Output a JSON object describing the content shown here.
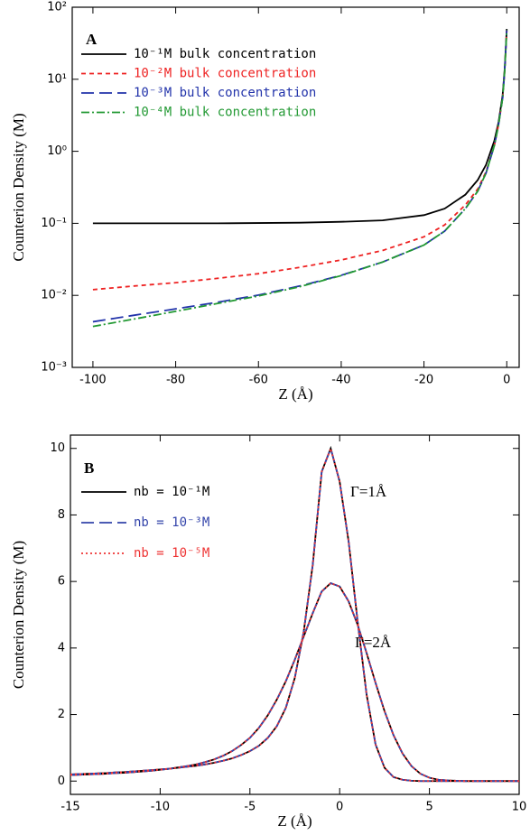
{
  "chart_data": [
    {
      "type": "line",
      "panel_label": "A",
      "x_label": "Z (Å)",
      "y_label": "Counterion Density (M)",
      "log_y": true,
      "xlim": [
        -105,
        3
      ],
      "xticks": [
        -100,
        -80,
        -60,
        -40,
        -20,
        0
      ],
      "ylim": [
        0.001,
        100
      ],
      "yticks": [
        {
          "value": 0.001,
          "label": "10⁻³"
        },
        {
          "value": 0.01,
          "label": "10⁻²"
        },
        {
          "value": 0.1,
          "label": "10⁻¹"
        },
        {
          "value": 1,
          "label": "10⁰"
        },
        {
          "value": 10,
          "label": "10¹"
        },
        {
          "value": 100,
          "label": "10²"
        }
      ],
      "x": [
        -100,
        -90,
        -80,
        -70,
        -60,
        -50,
        -40,
        -30,
        -20,
        -15,
        -10,
        -7,
        -5,
        -3,
        -2,
        -1,
        -0.5,
        0
      ],
      "series": [
        {
          "name": "10⁻¹M bulk concentration",
          "color": "#000000",
          "dash": "solid",
          "values": [
            0.1,
            0.1,
            0.1,
            0.1,
            0.101,
            0.102,
            0.105,
            0.11,
            0.13,
            0.16,
            0.25,
            0.4,
            0.65,
            1.4,
            2.5,
            6,
            14,
            50
          ]
        },
        {
          "name": "10⁻²M bulk concentration",
          "color": "#ee2222",
          "dash": "short",
          "values": [
            0.012,
            0.0135,
            0.015,
            0.0172,
            0.02,
            0.0245,
            0.031,
            0.042,
            0.065,
            0.095,
            0.18,
            0.3,
            0.52,
            1.2,
            2.3,
            5.5,
            13,
            48
          ]
        },
        {
          "name": "10⁻³M bulk concentration",
          "color": "#2233aa",
          "dash": "long",
          "values": [
            0.0043,
            0.0053,
            0.0065,
            0.008,
            0.0101,
            0.0135,
            0.019,
            0.029,
            0.05,
            0.078,
            0.16,
            0.28,
            0.5,
            1.2,
            2.3,
            5.5,
            13,
            48
          ]
        },
        {
          "name": "10⁻⁴M bulk concentration",
          "color": "#229933",
          "dash": "dashdot",
          "values": [
            0.0037,
            0.0047,
            0.006,
            0.0077,
            0.0098,
            0.0132,
            0.0188,
            0.029,
            0.05,
            0.078,
            0.16,
            0.28,
            0.5,
            1.2,
            2.3,
            5.5,
            13,
            48
          ]
        }
      ]
    },
    {
      "type": "line",
      "panel_label": "B",
      "x_label": "Z (Å)",
      "y_label": "Counterion Density (M)",
      "log_y": false,
      "xlim": [
        -15,
        10
      ],
      "xticks": [
        -15,
        -10,
        -5,
        0,
        5,
        10
      ],
      "ylim": [
        -0.4,
        10.4
      ],
      "yticks": [
        0,
        2,
        4,
        6,
        8,
        10
      ],
      "annotations": [
        "Γ=1Å",
        "Γ=2Å"
      ],
      "x": [
        -15,
        -14.5,
        -14,
        -13.5,
        -13,
        -12.5,
        -12,
        -11.5,
        -11,
        -10.5,
        -10,
        -9.5,
        -9,
        -8.5,
        -8,
        -7.5,
        -7,
        -6.5,
        -6,
        -5.5,
        -5,
        -4.5,
        -4,
        -3.5,
        -3,
        -2.5,
        -2,
        -1.5,
        -1,
        -0.5,
        0,
        0.5,
        1,
        1.5,
        2,
        2.5,
        3,
        3.5,
        4,
        4.5,
        5,
        5.5,
        6,
        6.5,
        7,
        7.5,
        8,
        8.5,
        9,
        9.5,
        10
      ],
      "series": [
        {
          "name": "nb = 10⁻¹M",
          "color": "#000000",
          "dash": "solid",
          "curves": [
            [
              0.2,
              0.21,
              0.22,
              0.23,
              0.24,
              0.26,
              0.27,
              0.29,
              0.31,
              0.33,
              0.35,
              0.37,
              0.4,
              0.43,
              0.46,
              0.5,
              0.55,
              0.61,
              0.68,
              0.78,
              0.9,
              1.06,
              1.3,
              1.65,
              2.2,
              3.1,
              4.5,
              6.5,
              9.3,
              10.0,
              9.0,
              7.2,
              4.8,
              2.6,
              1.1,
              0.4,
              0.12,
              0.04,
              0.01,
              0,
              0,
              0,
              0,
              0,
              0,
              0,
              0,
              0,
              0,
              0,
              0
            ],
            [
              0.18,
              0.19,
              0.2,
              0.21,
              0.22,
              0.24,
              0.25,
              0.27,
              0.29,
              0.31,
              0.34,
              0.37,
              0.41,
              0.45,
              0.5,
              0.57,
              0.65,
              0.76,
              0.9,
              1.08,
              1.3,
              1.6,
              1.98,
              2.45,
              3.0,
              3.65,
              4.35,
              5.05,
              5.7,
              5.95,
              5.85,
              5.4,
              4.7,
              3.85,
              2.95,
              2.1,
              1.38,
              0.83,
              0.45,
              0.22,
              0.1,
              0.04,
              0.02,
              0.01,
              0,
              0,
              0,
              0,
              0,
              0,
              0
            ]
          ]
        },
        {
          "name": "nb = 10⁻³M",
          "color": "#3344aa",
          "dash": "long",
          "curves": [
            [
              0.2,
              0.21,
              0.22,
              0.23,
              0.24,
              0.26,
              0.27,
              0.29,
              0.31,
              0.33,
              0.35,
              0.37,
              0.4,
              0.43,
              0.46,
              0.5,
              0.55,
              0.61,
              0.68,
              0.78,
              0.9,
              1.06,
              1.3,
              1.65,
              2.2,
              3.1,
              4.5,
              6.5,
              9.3,
              10.0,
              9.0,
              7.2,
              4.8,
              2.6,
              1.1,
              0.4,
              0.12,
              0.04,
              0.01,
              0,
              0,
              0,
              0,
              0,
              0,
              0,
              0,
              0,
              0,
              0,
              0
            ],
            [
              0.18,
              0.19,
              0.2,
              0.21,
              0.22,
              0.24,
              0.25,
              0.27,
              0.29,
              0.31,
              0.34,
              0.37,
              0.41,
              0.45,
              0.5,
              0.57,
              0.65,
              0.76,
              0.9,
              1.08,
              1.3,
              1.6,
              1.98,
              2.45,
              3.0,
              3.65,
              4.35,
              5.05,
              5.7,
              5.95,
              5.85,
              5.4,
              4.7,
              3.85,
              2.95,
              2.1,
              1.38,
              0.83,
              0.45,
              0.22,
              0.1,
              0.04,
              0.02,
              0.01,
              0,
              0,
              0,
              0,
              0,
              0,
              0
            ]
          ]
        },
        {
          "name": "nb = 10⁻⁵M",
          "color": "#ee3333",
          "dash": "dot",
          "curves": [
            [
              0.2,
              0.21,
              0.22,
              0.23,
              0.24,
              0.26,
              0.27,
              0.29,
              0.31,
              0.33,
              0.35,
              0.37,
              0.4,
              0.43,
              0.46,
              0.5,
              0.55,
              0.61,
              0.68,
              0.78,
              0.9,
              1.06,
              1.3,
              1.65,
              2.2,
              3.1,
              4.5,
              6.5,
              9.3,
              10.0,
              9.0,
              7.2,
              4.8,
              2.6,
              1.1,
              0.4,
              0.12,
              0.04,
              0.01,
              0,
              0,
              0,
              0,
              0,
              0,
              0,
              0,
              0,
              0,
              0,
              0
            ],
            [
              0.18,
              0.19,
              0.2,
              0.21,
              0.22,
              0.24,
              0.25,
              0.27,
              0.29,
              0.31,
              0.34,
              0.37,
              0.41,
              0.45,
              0.5,
              0.57,
              0.65,
              0.76,
              0.9,
              1.08,
              1.3,
              1.6,
              1.98,
              2.45,
              3.0,
              3.65,
              4.35,
              5.05,
              5.7,
              5.95,
              5.85,
              5.4,
              4.7,
              3.85,
              2.95,
              2.1,
              1.38,
              0.83,
              0.45,
              0.22,
              0.1,
              0.04,
              0.02,
              0.01,
              0,
              0,
              0,
              0,
              0,
              0,
              0
            ]
          ]
        }
      ]
    }
  ]
}
